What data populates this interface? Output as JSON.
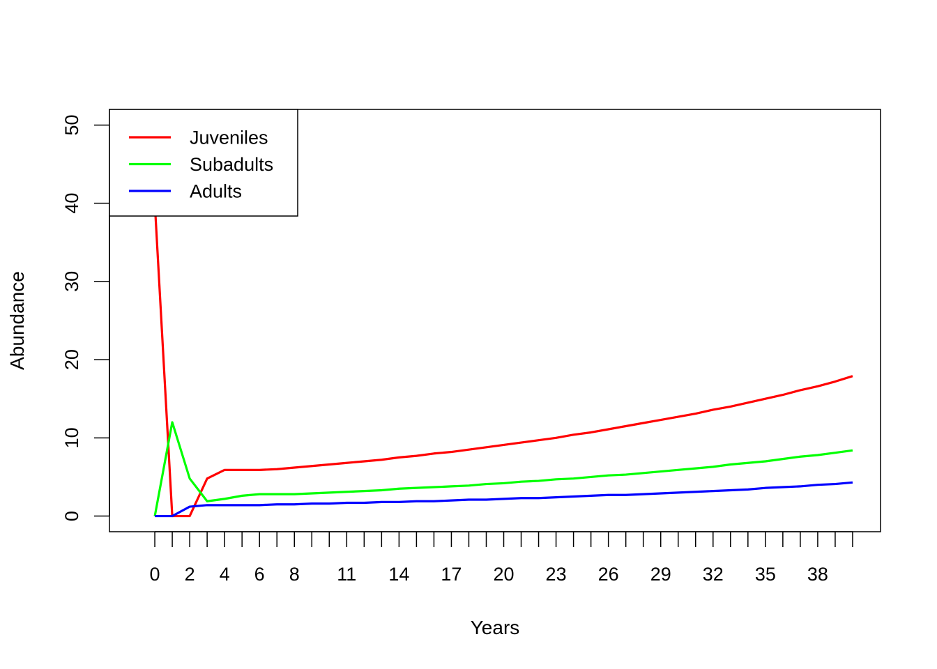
{
  "chart_data": {
    "type": "line",
    "title": "",
    "xlabel": "Years",
    "ylabel": "Abundance",
    "xlim": [
      -2.6,
      41.6
    ],
    "ylim": [
      -2,
      52
    ],
    "x_ticks": [
      0,
      1,
      2,
      3,
      4,
      5,
      6,
      7,
      8,
      9,
      10,
      11,
      12,
      13,
      14,
      15,
      16,
      17,
      18,
      19,
      20,
      21,
      22,
      23,
      24,
      25,
      26,
      27,
      28,
      29,
      30,
      31,
      32,
      33,
      34,
      35,
      36,
      37,
      38,
      39,
      40
    ],
    "x_tick_labels": [
      "0",
      "",
      "2",
      "",
      "4",
      "",
      "6",
      "",
      "8",
      "",
      "",
      "11",
      "",
      "",
      "14",
      "",
      "",
      "17",
      "",
      "",
      "20",
      "",
      "",
      "23",
      "",
      "",
      "26",
      "",
      "",
      "29",
      "",
      "",
      "32",
      "",
      "",
      "35",
      "",
      "",
      "38",
      "",
      ""
    ],
    "y_ticks": [
      0,
      10,
      20,
      30,
      40,
      50
    ],
    "y_tick_labels": [
      "0",
      "10",
      "20",
      "30",
      "40",
      "50"
    ],
    "grid": false,
    "legend_position": "top-left",
    "x": [
      0,
      1,
      2,
      3,
      4,
      5,
      6,
      7,
      8,
      9,
      10,
      11,
      12,
      13,
      14,
      15,
      16,
      17,
      18,
      19,
      20,
      21,
      22,
      23,
      24,
      25,
      26,
      27,
      28,
      29,
      30,
      31,
      32,
      33,
      34,
      35,
      36,
      37,
      38,
      39,
      40
    ],
    "series": [
      {
        "name": "Juveniles",
        "color": "#ff0000",
        "values": [
          40,
          0,
          0,
          4.8,
          5.9,
          5.9,
          5.9,
          6.0,
          6.2,
          6.4,
          6.6,
          6.8,
          7.0,
          7.2,
          7.5,
          7.7,
          8.0,
          8.2,
          8.5,
          8.8,
          9.1,
          9.4,
          9.7,
          10.0,
          10.4,
          10.7,
          11.1,
          11.5,
          11.9,
          12.3,
          12.7,
          13.1,
          13.6,
          14.0,
          14.5,
          15.0,
          15.5,
          16.1,
          16.6,
          17.2,
          17.9
        ]
      },
      {
        "name": "Subadults",
        "color": "#00ff00",
        "values": [
          0,
          12,
          4.8,
          1.9,
          2.2,
          2.6,
          2.8,
          2.8,
          2.8,
          2.9,
          3.0,
          3.1,
          3.2,
          3.3,
          3.5,
          3.6,
          3.7,
          3.8,
          3.9,
          4.1,
          4.2,
          4.4,
          4.5,
          4.7,
          4.8,
          5.0,
          5.2,
          5.3,
          5.5,
          5.7,
          5.9,
          6.1,
          6.3,
          6.6,
          6.8,
          7.0,
          7.3,
          7.6,
          7.8,
          8.1,
          8.4
        ]
      },
      {
        "name": "Adults",
        "color": "#0000ff",
        "values": [
          0,
          0,
          1.2,
          1.4,
          1.4,
          1.4,
          1.4,
          1.5,
          1.5,
          1.6,
          1.6,
          1.7,
          1.7,
          1.8,
          1.8,
          1.9,
          1.9,
          2.0,
          2.1,
          2.1,
          2.2,
          2.3,
          2.3,
          2.4,
          2.5,
          2.6,
          2.7,
          2.7,
          2.8,
          2.9,
          3.0,
          3.1,
          3.2,
          3.3,
          3.4,
          3.6,
          3.7,
          3.8,
          4.0,
          4.1,
          4.3
        ]
      }
    ]
  }
}
